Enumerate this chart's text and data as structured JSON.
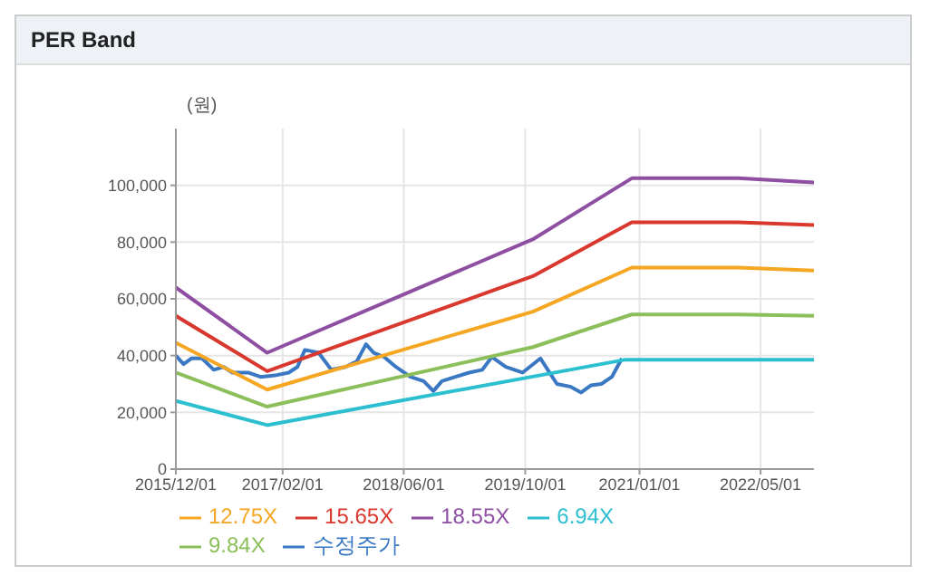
{
  "chart_data": {
    "type": "line",
    "title": "PER Band",
    "ylabel": "(원)",
    "xlim": [
      "2015-12-01",
      "2022-12-01"
    ],
    "xticks": [
      {
        "value": "2015-12-01",
        "label": "2015/12/01"
      },
      {
        "value": "2017-02-01",
        "label": "2017/02/01"
      },
      {
        "value": "2018-06-01",
        "label": "2018/06/01"
      },
      {
        "value": "2019-10-01",
        "label": "2019/10/01"
      },
      {
        "value": "2021-01-01",
        "label": "2021/01/01"
      },
      {
        "value": "2022-05-01",
        "label": "2022/05/01"
      }
    ],
    "ylim": [
      0,
      120000
    ],
    "yticks": [
      {
        "value": 0,
        "label": "0"
      },
      {
        "value": 20000,
        "label": "20,000"
      },
      {
        "value": 40000,
        "label": "40,000"
      },
      {
        "value": 60000,
        "label": "60,000"
      },
      {
        "value": 80000,
        "label": "80,000"
      },
      {
        "value": 100000,
        "label": "100,000"
      }
    ],
    "grid": true,
    "legend": "bottom",
    "marker": "none",
    "line_style": "solid",
    "series": [
      {
        "name": "수정주가",
        "color": "#3a78c4",
        "x": [
          "2015-12-01",
          "2016-01-01",
          "2016-02-01",
          "2016-03-15",
          "2016-05-01",
          "2016-06-10",
          "2016-07-15",
          "2016-09-15",
          "2016-11-05",
          "2017-01-01",
          "2017-02-25",
          "2017-04-01",
          "2017-05-01",
          "2017-06-25",
          "2017-08-15",
          "2017-10-10",
          "2017-11-25",
          "2018-01-01",
          "2018-02-01",
          "2018-03-15",
          "2018-05-01",
          "2018-06-28",
          "2018-08-20",
          "2018-09-28",
          "2018-11-01",
          "2018-12-25",
          "2019-02-18",
          "2019-04-12",
          "2019-05-20",
          "2019-07-15",
          "2019-09-20",
          "2019-12-01",
          "2020-02-05",
          "2020-04-01",
          "2020-05-12",
          "2020-06-20",
          "2020-08-01",
          "2020-09-12",
          "2020-10-10",
          "2020-10-22"
        ],
        "values": [
          40000,
          37000,
          39000,
          39000,
          35000,
          36000,
          34000,
          34000,
          32500,
          33000,
          34000,
          36000,
          42000,
          41000,
          35000,
          36000,
          38000,
          44000,
          41000,
          39500,
          36000,
          32500,
          31000,
          27500,
          31000,
          32500,
          34000,
          35000,
          39500,
          36000,
          34000,
          39000,
          30000,
          29000,
          27000,
          29500,
          30000,
          32500,
          37000,
          39000
        ]
      },
      {
        "name": "6.94X",
        "color": "#2bbfcf",
        "x": [
          "2015-12-01",
          "2016-12-01",
          "2020-11-01",
          "2022-12-01"
        ],
        "values": [
          24000,
          15500,
          38500,
          38500
        ]
      },
      {
        "name": "9.84X",
        "color": "#8cbf5a",
        "x": [
          "2015-12-01",
          "2016-12-01",
          "2019-11-01",
          "2020-12-01",
          "2022-02-01",
          "2022-12-01"
        ],
        "values": [
          34000,
          22000,
          43000,
          54500,
          54500,
          54000
        ]
      },
      {
        "name": "12.75X",
        "color": "#f5a623",
        "x": [
          "2015-12-01",
          "2016-12-01",
          "2019-11-01",
          "2020-12-01",
          "2022-02-01",
          "2022-12-01"
        ],
        "values": [
          44500,
          28000,
          55500,
          71000,
          71000,
          70000
        ]
      },
      {
        "name": "15.65X",
        "color": "#d9382e",
        "x": [
          "2015-12-01",
          "2016-12-01",
          "2019-11-01",
          "2020-12-01",
          "2022-02-01",
          "2022-12-01"
        ],
        "values": [
          54000,
          34500,
          68000,
          87000,
          87000,
          86000
        ]
      },
      {
        "name": "18.55X",
        "color": "#8e4fa3",
        "x": [
          "2015-12-01",
          "2016-12-01",
          "2019-11-01",
          "2020-12-01",
          "2022-02-01",
          "2022-12-01"
        ],
        "values": [
          64000,
          41000,
          81000,
          102500,
          102500,
          101000
        ]
      }
    ]
  }
}
